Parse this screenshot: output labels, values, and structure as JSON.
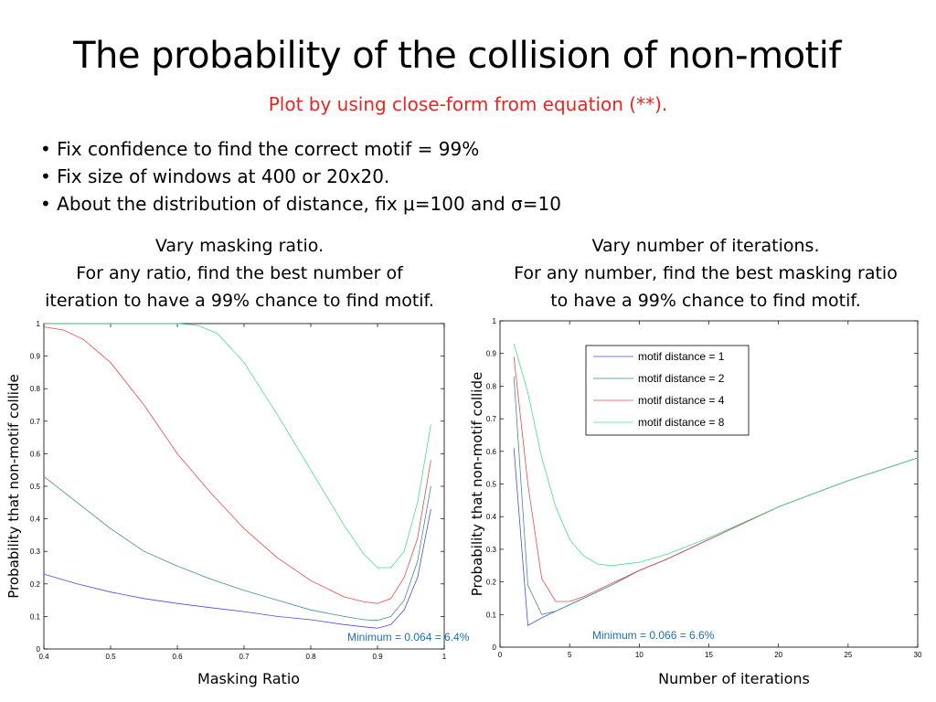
{
  "slide": {
    "title": "The probability of the collision of non-motif",
    "subtitle": "Plot by using close-form from equation (**).",
    "bullets": [
      "Fix confidence to find the correct motif = 99%",
      "Fix size of windows at 400 or 20x20.",
      "About the distribution of distance, fix μ=100 and σ=10"
    ],
    "bullet_mark": "•",
    "left_caption": [
      "Vary masking ratio.",
      "For any ratio, find the best number of",
      "iteration to have a 99% chance to find motif."
    ],
    "right_caption": [
      "Vary number of iterations.",
      "For any number, find the best masking ratio",
      "to have a 99% chance to find motif."
    ]
  },
  "colors": {
    "subtitle": "#e8261d",
    "annotation": "#1f6fb5",
    "series": [
      "#4a4af0",
      "#3f8f8f",
      "#f04848",
      "#48e088"
    ]
  },
  "chart_data": [
    {
      "type": "line",
      "xlabel": "Masking Ratio",
      "ylabel": "Probability that  non-motif collide",
      "xlim": [
        0.4,
        1
      ],
      "ylim": [
        0,
        1
      ],
      "xticks": [
        "0.4",
        "0.5",
        "0.6",
        "0.7",
        "0.8",
        "0.9",
        "1"
      ],
      "yticks": [
        "0",
        "0.1",
        "0.2",
        "0.3",
        "0.4",
        "0.5",
        "0.6",
        "0.7",
        "0.8",
        "0.9",
        "1"
      ],
      "annotation": "Minimum = 0.064 = 6.4%",
      "grid": false,
      "series": [
        {
          "x": [
            0.4,
            0.45,
            0.5,
            0.55,
            0.6,
            0.65,
            0.7,
            0.75,
            0.8,
            0.85,
            0.88,
            0.9,
            0.92,
            0.94,
            0.96,
            0.98
          ],
          "y": [
            0.23,
            0.2,
            0.175,
            0.155,
            0.14,
            0.127,
            0.115,
            0.1,
            0.09,
            0.075,
            0.068,
            0.064,
            0.075,
            0.12,
            0.22,
            0.43
          ]
        },
        {
          "x": [
            0.4,
            0.45,
            0.5,
            0.55,
            0.6,
            0.65,
            0.7,
            0.75,
            0.8,
            0.85,
            0.88,
            0.9,
            0.92,
            0.94,
            0.96,
            0.98
          ],
          "y": [
            0.53,
            0.45,
            0.37,
            0.3,
            0.255,
            0.215,
            0.18,
            0.15,
            0.12,
            0.1,
            0.09,
            0.088,
            0.1,
            0.15,
            0.27,
            0.5
          ]
        },
        {
          "x": [
            0.4,
            0.43,
            0.46,
            0.5,
            0.55,
            0.6,
            0.65,
            0.7,
            0.75,
            0.8,
            0.85,
            0.88,
            0.9,
            0.92,
            0.94,
            0.96,
            0.98
          ],
          "y": [
            0.99,
            0.98,
            0.95,
            0.88,
            0.75,
            0.6,
            0.48,
            0.37,
            0.28,
            0.21,
            0.16,
            0.145,
            0.14,
            0.155,
            0.22,
            0.34,
            0.58
          ]
        },
        {
          "x": [
            0.4,
            0.5,
            0.6,
            0.63,
            0.66,
            0.7,
            0.75,
            0.8,
            0.85,
            0.88,
            0.9,
            0.92,
            0.94,
            0.96,
            0.98
          ],
          "y": [
            1.0,
            1.0,
            1.0,
            0.995,
            0.97,
            0.88,
            0.72,
            0.55,
            0.38,
            0.29,
            0.25,
            0.25,
            0.3,
            0.45,
            0.69
          ]
        }
      ]
    },
    {
      "type": "line",
      "xlabel": "Number of iterations",
      "ylabel": "Probability that  non-motif collide",
      "xlim": [
        0,
        30
      ],
      "ylim": [
        0,
        1
      ],
      "xticks": [
        "0",
        "5",
        "10",
        "15",
        "20",
        "25",
        "30"
      ],
      "yticks": [
        "0",
        "0.1",
        "0.2",
        "0.3",
        "0.4",
        "0.5",
        "0.6",
        "0.7",
        "0.8",
        "0.9",
        "1"
      ],
      "annotation": "Minimum = 0.066 = 6.6%",
      "legend": [
        "motif distance = 1",
        "motif distance = 2",
        "motif distance = 4",
        "motif distance = 8"
      ],
      "legend_position": "top-right",
      "grid": false,
      "series": [
        {
          "name": "motif distance = 1",
          "x": [
            1,
            2,
            3,
            4,
            5,
            6,
            8,
            10,
            12,
            15,
            20,
            25,
            30
          ],
          "y": [
            0.61,
            0.066,
            0.09,
            0.11,
            0.13,
            0.15,
            0.19,
            0.235,
            0.27,
            0.33,
            0.43,
            0.51,
            0.58
          ]
        },
        {
          "name": "motif distance = 2",
          "x": [
            1,
            2,
            3,
            4,
            5,
            6,
            8,
            10,
            12,
            15,
            20,
            25,
            30
          ],
          "y": [
            0.83,
            0.19,
            0.1,
            0.11,
            0.13,
            0.15,
            0.19,
            0.235,
            0.27,
            0.33,
            0.43,
            0.51,
            0.58
          ]
        },
        {
          "name": "motif distance = 4",
          "x": [
            1,
            2,
            3,
            4,
            5,
            6,
            8,
            10,
            12,
            15,
            20,
            25,
            30
          ],
          "y": [
            0.89,
            0.5,
            0.21,
            0.14,
            0.14,
            0.155,
            0.195,
            0.235,
            0.27,
            0.33,
            0.43,
            0.51,
            0.58
          ]
        },
        {
          "name": "motif distance = 8",
          "x": [
            1,
            2,
            3,
            4,
            5,
            6,
            7,
            8,
            10,
            12,
            15,
            20,
            25,
            30
          ],
          "y": [
            0.93,
            0.78,
            0.58,
            0.43,
            0.33,
            0.28,
            0.255,
            0.25,
            0.26,
            0.285,
            0.335,
            0.43,
            0.51,
            0.58
          ]
        }
      ]
    }
  ]
}
